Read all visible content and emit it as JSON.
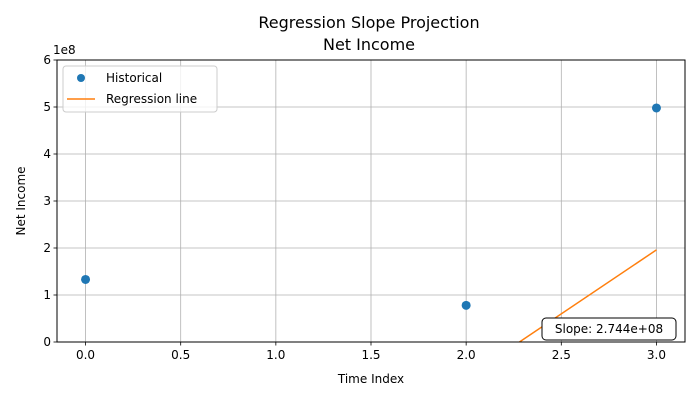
{
  "chart_data": {
    "type": "scatter",
    "title_lines": [
      "Regression Slope Projection",
      "Net Income"
    ],
    "xlabel": "Time Index",
    "ylabel": "Net Income",
    "y_offset_text": "1e8",
    "xlim": [
      -0.15,
      3.15
    ],
    "ylim": [
      0,
      6
    ],
    "y_scale_factor": 100000000,
    "x_ticks": [
      0.0,
      0.5,
      1.0,
      1.5,
      2.0,
      2.5,
      3.0
    ],
    "x_tick_labels": [
      "0.0",
      "0.5",
      "1.0",
      "1.5",
      "2.0",
      "2.5",
      "3.0"
    ],
    "y_ticks": [
      0,
      1,
      2,
      3,
      4,
      5,
      6
    ],
    "y_tick_labels": [
      "0",
      "1",
      "2",
      "3",
      "4",
      "5",
      "6"
    ],
    "grid": true,
    "legend_position": "top-left",
    "series": [
      {
        "name": "Historical",
        "kind": "points",
        "color": "#1f77b4",
        "x": [
          0,
          2,
          3
        ],
        "y": [
          1.33,
          0.78,
          4.98
        ]
      },
      {
        "name": "Regression line",
        "kind": "line",
        "color": "#ff7f0e",
        "x": [
          2.28,
          3
        ],
        "y": [
          0,
          1.96
        ]
      }
    ],
    "annotation": {
      "text": "Slope: 2.744e+08",
      "position": "bottom-right"
    }
  }
}
